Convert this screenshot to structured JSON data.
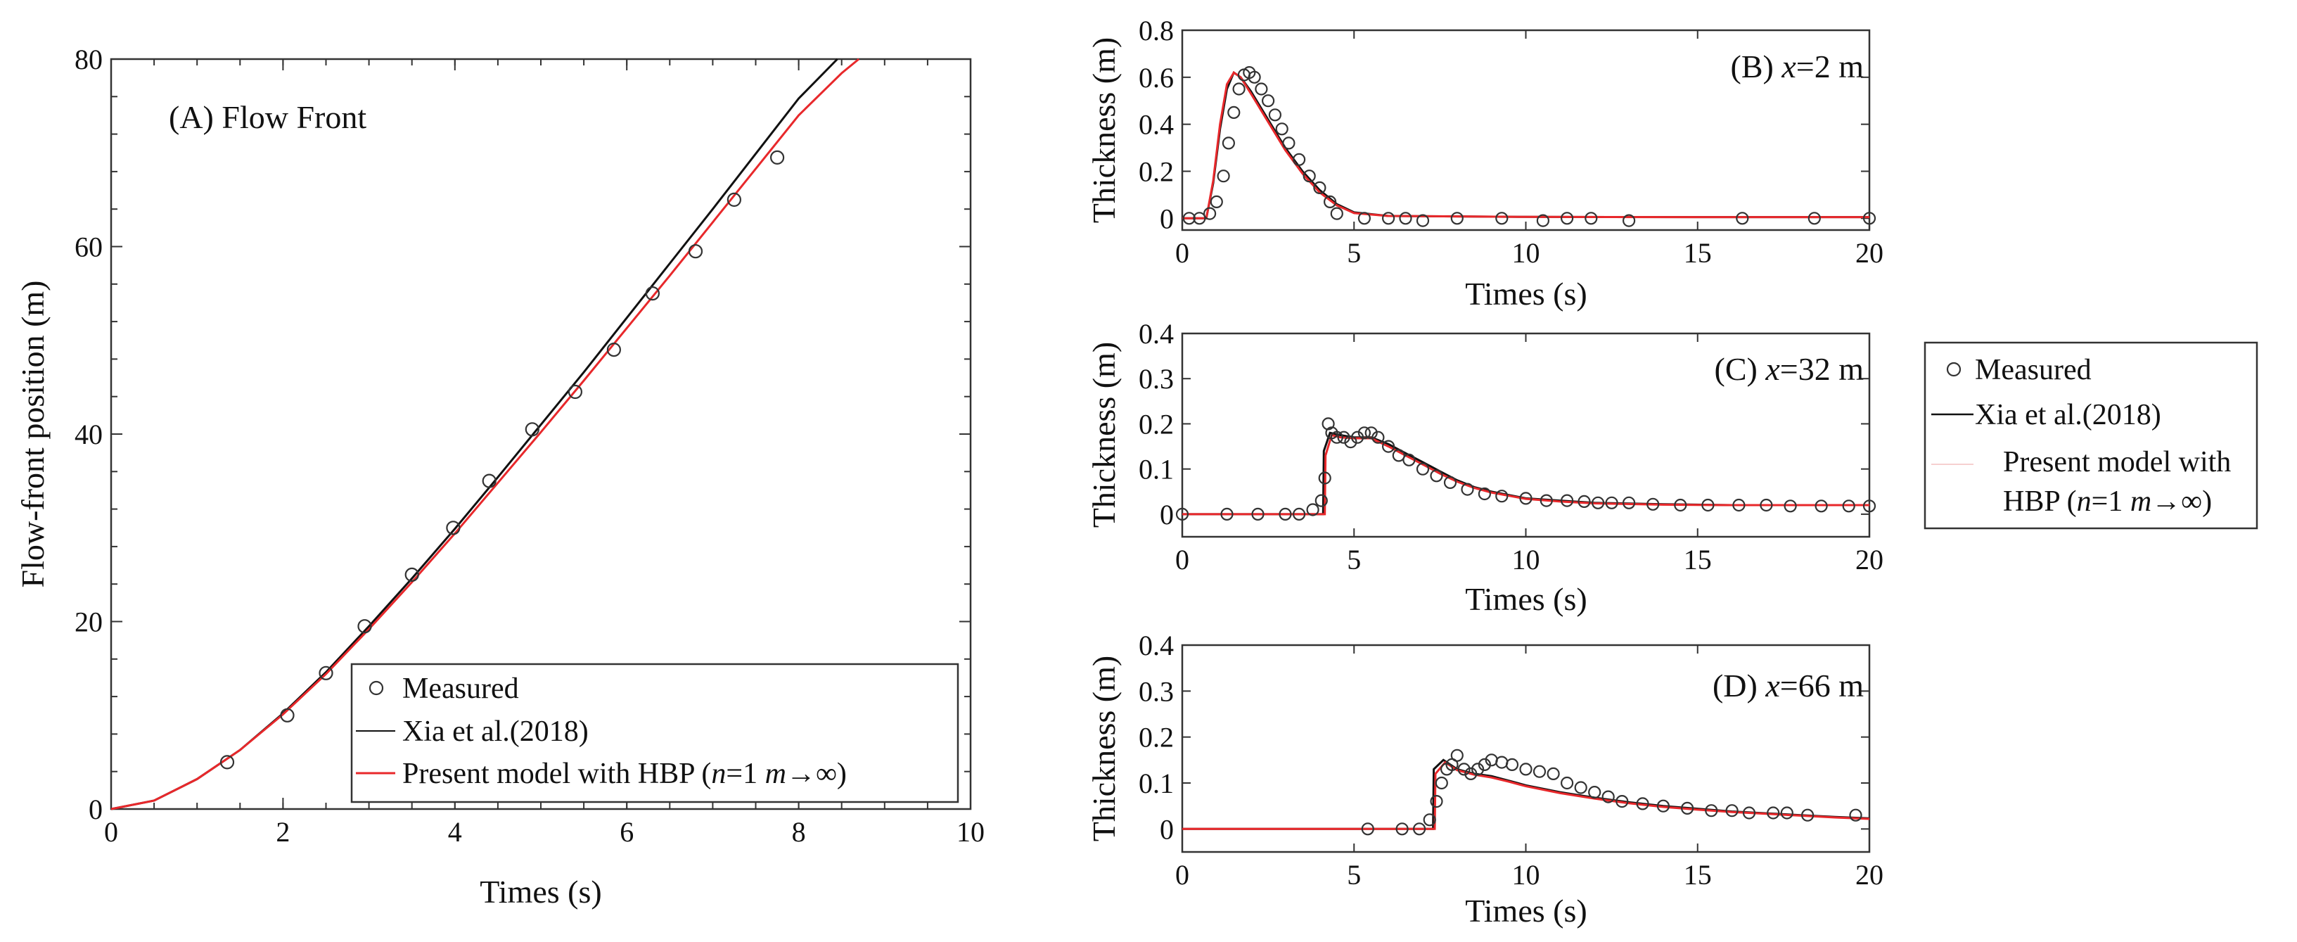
{
  "chart_data": [
    {
      "id": "A",
      "type": "line",
      "title": "(A)  Flow Front",
      "xlabel": "Times (s)",
      "ylabel": "Flow-front position (m)",
      "xlim": [
        0,
        10
      ],
      "ylim": [
        0,
        80
      ],
      "xticks": [
        0,
        2,
        4,
        6,
        8,
        10
      ],
      "yticks": [
        0,
        20,
        40,
        60,
        80
      ],
      "legend_position": "bottom-right",
      "series": [
        {
          "name": "Measured",
          "kind": "markers",
          "color": "#333333",
          "x": [
            1.35,
            2.05,
            2.5,
            2.95,
            3.5,
            3.98,
            4.4,
            4.9,
            5.4,
            5.85,
            6.3,
            6.8,
            7.25,
            7.75
          ],
          "y": [
            5,
            10,
            14.5,
            19.5,
            25,
            30,
            35,
            40.5,
            44.5,
            49,
            55,
            59.5,
            65,
            69.5
          ]
        },
        {
          "name": "Xia et al.(2018)",
          "kind": "line",
          "color": "#111111",
          "x": [
            0,
            0.5,
            1,
            1.5,
            2,
            2.5,
            3,
            3.5,
            4,
            4.5,
            5,
            5.5,
            6,
            6.5,
            7,
            7.5,
            8,
            8.45
          ],
          "y": [
            0,
            0.9,
            3.2,
            6.3,
            10.2,
            14.6,
            19.5,
            24.6,
            29.9,
            35.4,
            41.0,
            46.6,
            52.4,
            58.2,
            64.0,
            69.9,
            75.8,
            80
          ]
        },
        {
          "name": "Present model with HBP (n=1 m→∞)",
          "kind": "line",
          "color": "#e8282b",
          "x": [
            0,
            0.5,
            1,
            1.5,
            2,
            2.5,
            3,
            3.5,
            4,
            4.5,
            5,
            5.5,
            6,
            6.5,
            7,
            7.5,
            8,
            8.5,
            8.7
          ],
          "y": [
            0,
            0.9,
            3.2,
            6.3,
            10.1,
            14.4,
            19.2,
            24.2,
            29.4,
            34.8,
            40.2,
            45.7,
            51.3,
            56.9,
            62.6,
            68.3,
            74.0,
            78.5,
            80
          ]
        }
      ]
    },
    {
      "id": "B",
      "type": "line",
      "title": "(B)  x=2 m",
      "title_prefix": "(B)  ",
      "title_var": "x",
      "title_suffix": "=2 m",
      "xlabel": "Times (s)",
      "ylabel": "Thickness (m)",
      "xlim": [
        0,
        20
      ],
      "ylim": [
        -0.05,
        0.8
      ],
      "xticks": [
        0,
        5,
        10,
        15,
        20
      ],
      "yticks": [
        0,
        0.2,
        0.4,
        0.6,
        0.8
      ],
      "series": [
        {
          "name": "Measured",
          "kind": "markers",
          "color": "#333333",
          "x": [
            0.2,
            0.5,
            0.8,
            1.0,
            1.2,
            1.35,
            1.5,
            1.65,
            1.8,
            1.95,
            2.1,
            2.3,
            2.5,
            2.7,
            2.9,
            3.1,
            3.4,
            3.7,
            4.0,
            4.3,
            4.5,
            5.3,
            6.0,
            6.5,
            7.0,
            8.0,
            9.3,
            10.5,
            11.2,
            11.9,
            13.0,
            16.3,
            18.4,
            20.0
          ],
          "y": [
            0.0,
            0.0,
            0.02,
            0.07,
            0.18,
            0.32,
            0.45,
            0.55,
            0.61,
            0.62,
            0.6,
            0.55,
            0.5,
            0.44,
            0.38,
            0.32,
            0.25,
            0.18,
            0.13,
            0.07,
            0.02,
            0.0,
            0.0,
            0.0,
            -0.01,
            0.0,
            0.0,
            -0.01,
            0.0,
            0.0,
            -0.01,
            0.0,
            0.0,
            0.0
          ]
        },
        {
          "name": "Xia et al.(2018)",
          "kind": "line",
          "color": "#111111",
          "x": [
            0,
            0.7,
            0.9,
            1.1,
            1.3,
            1.5,
            1.7,
            2.0,
            2.5,
            3.0,
            3.5,
            4.0,
            4.5,
            5.0,
            6.0,
            8.0,
            10.0,
            15.0,
            20.0
          ],
          "y": [
            0,
            0,
            0.15,
            0.38,
            0.55,
            0.62,
            0.6,
            0.54,
            0.42,
            0.3,
            0.2,
            0.12,
            0.06,
            0.025,
            0.01,
            0.008,
            0.006,
            0.005,
            0.005
          ]
        },
        {
          "name": "Present model with HBP (n=1 m→∞)",
          "kind": "line",
          "color": "#e8282b",
          "x": [
            0,
            0.7,
            0.9,
            1.1,
            1.3,
            1.5,
            1.7,
            2.0,
            2.5,
            3.0,
            3.5,
            4.0,
            4.5,
            5.0,
            6.0,
            8.0,
            10.0,
            15.0,
            20.0
          ],
          "y": [
            0,
            0,
            0.16,
            0.4,
            0.57,
            0.62,
            0.6,
            0.53,
            0.41,
            0.29,
            0.19,
            0.11,
            0.055,
            0.022,
            0.01,
            0.008,
            0.006,
            0.005,
            0.005
          ]
        }
      ]
    },
    {
      "id": "C",
      "type": "line",
      "title": "(C)  x=32 m",
      "title_prefix": "(C)  ",
      "title_var": "x",
      "title_suffix": "=32 m",
      "xlabel": "Times (s)",
      "ylabel": "Thickness (m)",
      "xlim": [
        0,
        20
      ],
      "ylim": [
        -0.05,
        0.4
      ],
      "xticks": [
        0,
        5,
        10,
        15,
        20
      ],
      "yticks": [
        0,
        0.1,
        0.2,
        0.3,
        0.4
      ],
      "legend_position": "right-outside",
      "series": [
        {
          "name": "Measured",
          "kind": "markers",
          "color": "#333333",
          "x": [
            0.0,
            1.3,
            2.2,
            3.0,
            3.4,
            3.8,
            4.05,
            4.15,
            4.25,
            4.35,
            4.5,
            4.7,
            4.9,
            5.1,
            5.3,
            5.5,
            5.7,
            6.0,
            6.3,
            6.6,
            7.0,
            7.4,
            7.8,
            8.3,
            8.8,
            9.3,
            10.0,
            10.6,
            11.2,
            11.7,
            12.1,
            12.5,
            13.0,
            13.7,
            14.5,
            15.3,
            16.2,
            17.0,
            17.7,
            18.6,
            19.4,
            20.0
          ],
          "y": [
            0.0,
            0.0,
            0.0,
            0.0,
            0.0,
            0.01,
            0.03,
            0.08,
            0.2,
            0.18,
            0.17,
            0.17,
            0.16,
            0.17,
            0.18,
            0.18,
            0.17,
            0.15,
            0.13,
            0.12,
            0.1,
            0.085,
            0.07,
            0.055,
            0.045,
            0.04,
            0.035,
            0.03,
            0.03,
            0.028,
            0.025,
            0.025,
            0.025,
            0.022,
            0.02,
            0.02,
            0.02,
            0.02,
            0.018,
            0.018,
            0.018,
            0.018
          ]
        },
        {
          "name": "Xia et al.(2018)",
          "kind": "line",
          "color": "#111111",
          "x": [
            0,
            4.1,
            4.12,
            4.3,
            4.6,
            5.0,
            5.5,
            6.0,
            6.5,
            7.0,
            7.5,
            8.0,
            8.5,
            9.0,
            10.0,
            11.0,
            12.0,
            14.0,
            16.0,
            18.0,
            20.0
          ],
          "y": [
            0,
            0,
            0.14,
            0.18,
            0.175,
            0.17,
            0.17,
            0.155,
            0.135,
            0.115,
            0.095,
            0.075,
            0.06,
            0.05,
            0.035,
            0.03,
            0.025,
            0.022,
            0.02,
            0.02,
            0.02
          ]
        },
        {
          "name": "Present model with HBP (n=1 m→∞)",
          "kind": "line",
          "color": "#e8282b",
          "x": [
            0,
            4.15,
            4.17,
            4.35,
            4.6,
            5.0,
            5.5,
            6.0,
            6.5,
            7.0,
            7.5,
            8.0,
            8.5,
            9.0,
            10.0,
            11.0,
            12.0,
            14.0,
            16.0,
            18.0,
            20.0
          ],
          "y": [
            0,
            0,
            0.13,
            0.175,
            0.17,
            0.168,
            0.168,
            0.15,
            0.13,
            0.11,
            0.09,
            0.072,
            0.058,
            0.048,
            0.034,
            0.028,
            0.024,
            0.021,
            0.02,
            0.02,
            0.02
          ]
        }
      ]
    },
    {
      "id": "D",
      "type": "line",
      "title": "(D)  x=66 m",
      "title_prefix": "(D)  ",
      "title_var": "x",
      "title_suffix": "=66 m",
      "xlabel": "Times (s)",
      "ylabel": "Thickness (m)",
      "xlim": [
        0,
        20
      ],
      "ylim": [
        -0.05,
        0.4
      ],
      "xticks": [
        0,
        5,
        10,
        15,
        20
      ],
      "yticks": [
        0,
        0.1,
        0.2,
        0.3,
        0.4
      ],
      "series": [
        {
          "name": "Measured",
          "kind": "markers",
          "color": "#333333",
          "x": [
            5.4,
            6.4,
            6.9,
            7.2,
            7.4,
            7.55,
            7.7,
            7.85,
            8.0,
            8.2,
            8.4,
            8.6,
            8.8,
            9.0,
            9.3,
            9.6,
            10.0,
            10.4,
            10.8,
            11.2,
            11.6,
            12.0,
            12.4,
            12.8,
            13.4,
            14.0,
            14.7,
            15.4,
            16.0,
            16.5,
            17.2,
            17.6,
            18.2,
            19.6
          ],
          "y": [
            0.0,
            0.0,
            0.0,
            0.02,
            0.06,
            0.1,
            0.13,
            0.14,
            0.16,
            0.13,
            0.12,
            0.13,
            0.14,
            0.15,
            0.145,
            0.14,
            0.13,
            0.125,
            0.12,
            0.1,
            0.09,
            0.08,
            0.07,
            0.06,
            0.055,
            0.05,
            0.045,
            0.04,
            0.04,
            0.035,
            0.035,
            0.035,
            0.03,
            0.03
          ]
        },
        {
          "name": "Xia et al.(2018)",
          "kind": "line",
          "color": "#111111",
          "x": [
            0,
            7.3,
            7.32,
            7.6,
            8.0,
            8.5,
            9.0,
            9.5,
            10.0,
            11.0,
            12.0,
            13.0,
            14.0,
            15.0,
            16.0,
            17.0,
            18.0,
            19.0,
            20.0
          ],
          "y": [
            0,
            0,
            0.13,
            0.15,
            0.13,
            0.12,
            0.115,
            0.105,
            0.095,
            0.08,
            0.068,
            0.058,
            0.05,
            0.044,
            0.038,
            0.034,
            0.03,
            0.026,
            0.023
          ]
        },
        {
          "name": "Present model with HBP (n=1 m→∞)",
          "kind": "line",
          "color": "#e8282b",
          "x": [
            0,
            7.35,
            7.37,
            7.65,
            8.0,
            8.5,
            9.0,
            9.5,
            10.0,
            11.0,
            12.0,
            13.0,
            14.0,
            15.0,
            16.0,
            17.0,
            18.0,
            19.0,
            20.0
          ],
          "y": [
            0,
            0,
            0.12,
            0.145,
            0.128,
            0.118,
            0.112,
            0.103,
            0.093,
            0.078,
            0.066,
            0.056,
            0.048,
            0.042,
            0.037,
            0.033,
            0.029,
            0.025,
            0.022
          ]
        }
      ]
    }
  ],
  "legend_a": {
    "measured": "Measured",
    "xia": "Xia et al.(2018)",
    "present_prefix": "Present model with HBP (",
    "present_n": "n",
    "present_mid": "=1 ",
    "present_m": "m",
    "present_suffix": "→∞)"
  },
  "legend_right": {
    "measured": "Measured",
    "xia": "Xia et al.(2018)",
    "present_line1": "Present model with",
    "present_prefix": "HBP (",
    "present_n": "n",
    "present_mid": "=1 ",
    "present_m": "m",
    "present_suffix": "→∞)"
  },
  "colors": {
    "measured": "#333333",
    "xia": "#111111",
    "present": "#e8282b"
  }
}
